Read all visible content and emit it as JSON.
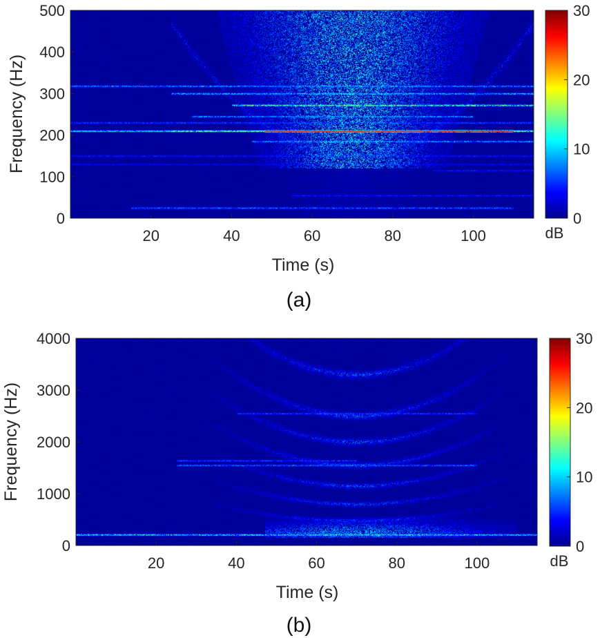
{
  "colormap": {
    "name": "jet",
    "stops": [
      "#00008f",
      "#0000ff",
      "#00ffff",
      "#ffff00",
      "#ff0000",
      "#800000"
    ],
    "background": "#00008f"
  },
  "chart_data": [
    {
      "type": "heatmap",
      "panel": "(a)",
      "xlabel": "Time (s)",
      "ylabel": "Frequency (Hz)",
      "xlim": [
        0,
        115
      ],
      "ylim": [
        0,
        500
      ],
      "xticks": [
        20,
        40,
        60,
        80,
        100
      ],
      "xtick_labels": [
        "20",
        "40",
        "60",
        "80",
        "100"
      ],
      "yticks": [
        0,
        100,
        200,
        300,
        400,
        500
      ],
      "ytick_labels": [
        "0",
        "100",
        "200",
        "300",
        "400",
        "500"
      ],
      "colorbar": {
        "label": "dB",
        "range": [
          0,
          30
        ],
        "ticks": [
          0,
          10,
          20,
          30
        ],
        "tick_labels": [
          "0",
          "10",
          "20",
          "30"
        ]
      },
      "features": [
        {
          "desc": "strong tonal line",
          "freq_hz": 210,
          "t_start": 0,
          "t_end": 115,
          "peak_db": 28
        },
        {
          "desc": "tonal line",
          "freq_hz": 318,
          "t_start": 0,
          "t_end": 115,
          "peak_db": 12
        },
        {
          "desc": "tonal line",
          "freq_hz": 300,
          "t_start": 25,
          "t_end": 115,
          "peak_db": 14
        },
        {
          "desc": "tonal line",
          "freq_hz": 272,
          "t_start": 40,
          "t_end": 115,
          "peak_db": 20
        },
        {
          "desc": "tonal line",
          "freq_hz": 245,
          "t_start": 30,
          "t_end": 100,
          "peak_db": 12
        },
        {
          "desc": "tonal line",
          "freq_hz": 230,
          "t_start": 0,
          "t_end": 115,
          "peak_db": 8
        },
        {
          "desc": "tonal line",
          "freq_hz": 185,
          "t_start": 45,
          "t_end": 115,
          "peak_db": 12
        },
        {
          "desc": "tonal line",
          "freq_hz": 150,
          "t_start": 0,
          "t_end": 115,
          "peak_db": 6
        },
        {
          "desc": "tonal line",
          "freq_hz": 130,
          "t_start": 0,
          "t_end": 115,
          "peak_db": 5
        },
        {
          "desc": "tonal line",
          "freq_hz": 115,
          "t_start": 90,
          "t_end": 115,
          "peak_db": 6
        },
        {
          "desc": "low-frequency band",
          "freq_hz": 55,
          "t_start": 55,
          "t_end": 115,
          "peak_db": 6
        },
        {
          "desc": "low-frequency transients",
          "freq_hz": 25,
          "t_start": 15,
          "t_end": 110,
          "peak_db": 10
        },
        {
          "desc": "broadband closest-approach energy",
          "freq_hz": 350,
          "t_center": 70,
          "t_width": 20,
          "peak_db": 14
        }
      ]
    },
    {
      "type": "heatmap",
      "panel": "(b)",
      "xlabel": "Time (s)",
      "ylabel": "Frequency (Hz)",
      "xlim": [
        0,
        115
      ],
      "ylim": [
        0,
        4000
      ],
      "xticks": [
        20,
        40,
        60,
        80,
        100
      ],
      "xtick_labels": [
        "20",
        "40",
        "60",
        "80",
        "100"
      ],
      "yticks": [
        0,
        1000,
        2000,
        3000,
        4000
      ],
      "ytick_labels": [
        "0",
        "1000",
        "2000",
        "3000",
        "4000"
      ],
      "colorbar": {
        "label": "dB",
        "range": [
          0,
          30
        ],
        "ticks": [
          0,
          10,
          20,
          30
        ],
        "tick_labels": [
          "0",
          "10",
          "20",
          "30"
        ]
      },
      "features": [
        {
          "desc": "low-frequency band",
          "freq_hz": 210,
          "t_start": 0,
          "t_end": 115,
          "peak_db": 16
        },
        {
          "desc": "tonal line",
          "freq_hz": 1550,
          "t_start": 25,
          "t_end": 100,
          "peak_db": 10
        },
        {
          "desc": "tonal line",
          "freq_hz": 1640,
          "t_start": 25,
          "t_end": 70,
          "peak_db": 8
        },
        {
          "desc": "tonal line",
          "freq_hz": 2550,
          "t_start": 40,
          "t_end": 100,
          "peak_db": 8
        },
        {
          "desc": "U-shaped interference striations (Lloyd mirror)",
          "t_center": 70,
          "vertex_freqs_hz": [
            480,
            800,
            1150,
            1550,
            2000,
            2500,
            3300
          ],
          "peak_db": 8
        }
      ]
    }
  ]
}
